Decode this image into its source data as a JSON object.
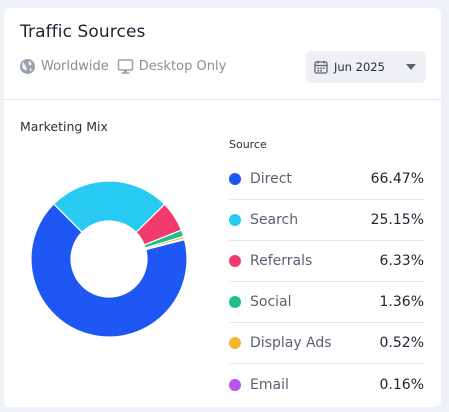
{
  "header": {
    "title": "Traffic Sources",
    "region": {
      "label": "Worldwide",
      "icon": "globe-icon"
    },
    "device": {
      "label": "Desktop Only",
      "icon": "desktop-icon"
    },
    "date_picker": {
      "value": "Jun 2025",
      "icon": "calendar-icon"
    }
  },
  "section": {
    "title": "Marketing Mix"
  },
  "legend": {
    "header": "Source"
  },
  "chart_data": {
    "type": "pie",
    "categories": [
      "Direct",
      "Search",
      "Referrals",
      "Social",
      "Display Ads",
      "Email"
    ],
    "values": [
      66.47,
      25.15,
      6.33,
      1.36,
      0.52,
      0.16
    ],
    "labels": [
      "66.47%",
      "25.15%",
      "6.33%",
      "1.36%",
      "0.52%",
      "0.16%"
    ],
    "colors": [
      "#1f57f5",
      "#28c9f2",
      "#f23a6e",
      "#1fbf8a",
      "#f6b42c",
      "#b455f0"
    ],
    "title": "Marketing Mix",
    "legend": "right"
  }
}
